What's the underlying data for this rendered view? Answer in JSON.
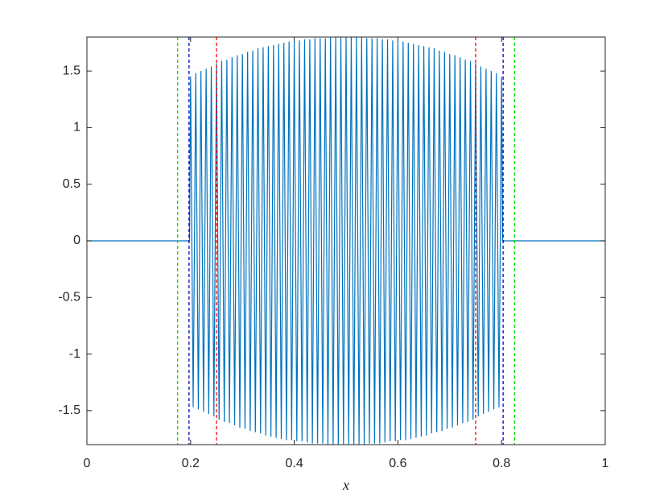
{
  "chart_data": {
    "type": "line",
    "xlabel": "x",
    "xlim": [
      0,
      1
    ],
    "xticks": [
      0,
      0.2,
      0.4,
      0.6,
      0.8,
      1
    ],
    "ylim": [
      -1.8,
      1.8
    ],
    "yticks": [
      -1.5,
      -1,
      -0.5,
      0,
      0.5,
      1,
      1.5
    ],
    "grid": false,
    "x": [
      0,
      0.198,
      0.2,
      0.205,
      0.21,
      0.215,
      0.22,
      0.225,
      0.23,
      0.235,
      0.24,
      0.245,
      0.25,
      0.255,
      0.26,
      0.265,
      0.27,
      0.275,
      0.28,
      0.285,
      0.29,
      0.295,
      0.3,
      0.305,
      0.31,
      0.315,
      0.32,
      0.325,
      0.33,
      0.335,
      0.34,
      0.345,
      0.35,
      0.355,
      0.36,
      0.365,
      0.37,
      0.375,
      0.38,
      0.385,
      0.39,
      0.395,
      0.4,
      0.405,
      0.41,
      0.415,
      0.42,
      0.425,
      0.43,
      0.435,
      0.44,
      0.445,
      0.45,
      0.455,
      0.46,
      0.465,
      0.47,
      0.475,
      0.48,
      0.485,
      0.49,
      0.495,
      0.5,
      0.505,
      0.51,
      0.515,
      0.52,
      0.525,
      0.53,
      0.535,
      0.54,
      0.545,
      0.55,
      0.555,
      0.56,
      0.565,
      0.57,
      0.575,
      0.58,
      0.585,
      0.59,
      0.595,
      0.6,
      0.605,
      0.61,
      0.615,
      0.62,
      0.625,
      0.63,
      0.635,
      0.64,
      0.645,
      0.65,
      0.655,
      0.66,
      0.665,
      0.67,
      0.675,
      0.68,
      0.685,
      0.69,
      0.695,
      0.7,
      0.705,
      0.71,
      0.715,
      0.72,
      0.725,
      0.73,
      0.735,
      0.74,
      0.745,
      0.75,
      0.755,
      0.76,
      0.765,
      0.77,
      0.775,
      0.78,
      0.785,
      0.79,
      0.795,
      0.8,
      0.802,
      1
    ],
    "series": [
      {
        "color": "#0072bd",
        "values": [
          0,
          0,
          1.45,
          -1.47,
          1.48,
          -1.49,
          1.5,
          -1.51,
          1.52,
          -1.53,
          1.54,
          -1.55,
          1.57,
          -1.58,
          1.59,
          -1.6,
          1.6,
          -1.61,
          1.62,
          -1.63,
          1.64,
          -1.65,
          1.65,
          -1.66,
          1.67,
          -1.68,
          1.68,
          -1.69,
          1.7,
          -1.7,
          1.71,
          -1.72,
          1.72,
          -1.73,
          1.73,
          -1.74,
          1.74,
          -1.75,
          1.75,
          -1.76,
          1.76,
          -1.76,
          1.76,
          -1.77,
          1.77,
          -1.77,
          1.78,
          -1.78,
          1.78,
          -1.79,
          1.79,
          -1.79,
          1.79,
          -1.79,
          1.79,
          -1.8,
          1.8,
          -1.8,
          1.8,
          -1.8,
          1.8,
          -1.8,
          1.8,
          -1.8,
          1.8,
          -1.8,
          1.8,
          -1.8,
          1.8,
          -1.8,
          1.79,
          -1.79,
          1.79,
          -1.79,
          1.79,
          -1.79,
          1.78,
          -1.78,
          1.78,
          -1.77,
          1.77,
          -1.77,
          1.76,
          -1.76,
          1.76,
          -1.76,
          1.75,
          -1.75,
          1.74,
          -1.74,
          1.73,
          -1.73,
          1.72,
          -1.72,
          1.71,
          -1.7,
          1.7,
          -1.69,
          1.68,
          -1.68,
          1.67,
          -1.66,
          1.65,
          -1.65,
          1.64,
          -1.63,
          1.62,
          -1.61,
          1.6,
          -1.6,
          1.59,
          -1.58,
          1.57,
          -1.55,
          1.54,
          -1.53,
          1.52,
          -1.51,
          1.5,
          -1.49,
          1.48,
          -1.47,
          1.45,
          0,
          0
        ]
      }
    ],
    "vlines": [
      {
        "x": 0.175,
        "color": "#00e000"
      },
      {
        "x": 0.825,
        "color": "#00e000"
      },
      {
        "x": 0.197,
        "color": "#0000cc"
      },
      {
        "x": 0.803,
        "color": "#0000cc"
      },
      {
        "x": 0.25,
        "color": "#ff0000"
      },
      {
        "x": 0.75,
        "color": "#ff0000"
      }
    ]
  }
}
